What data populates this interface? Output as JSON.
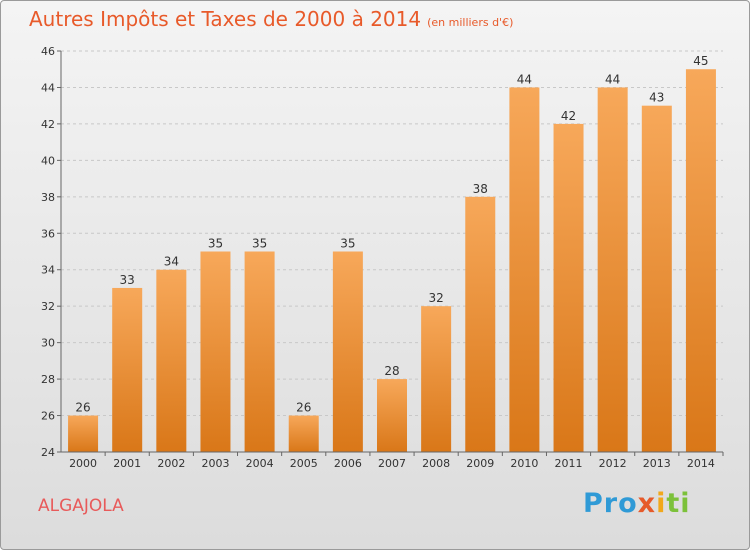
{
  "title_main": "Autres Impôts et Taxes de 2000 à 2014",
  "title_unit": "(en milliers d'€)",
  "commune": "ALGAJOLA",
  "logo": {
    "p1": "Pro",
    "p2": "x",
    "p3": "i",
    "p4": "ti"
  },
  "colors": {
    "bar_top": "#f7a85a",
    "bar_bottom": "#d97718",
    "title": "#e85a2a"
  },
  "chart_data": {
    "type": "bar",
    "title": "Autres Impôts et Taxes de 2000 à 2014",
    "subtitle": "(en milliers d'€)",
    "categories": [
      "2000",
      "2001",
      "2002",
      "2003",
      "2004",
      "2005",
      "2006",
      "2007",
      "2008",
      "2009",
      "2010",
      "2011",
      "2012",
      "2013",
      "2014"
    ],
    "values": [
      26,
      33,
      34,
      35,
      35,
      26,
      35,
      28,
      32,
      38,
      44,
      42,
      44,
      43,
      45
    ],
    "ylim": [
      24,
      46
    ],
    "yticks": [
      24,
      26,
      28,
      30,
      32,
      34,
      36,
      38,
      40,
      42,
      44,
      46
    ],
    "grid": true,
    "xlabel": "",
    "ylabel": ""
  }
}
